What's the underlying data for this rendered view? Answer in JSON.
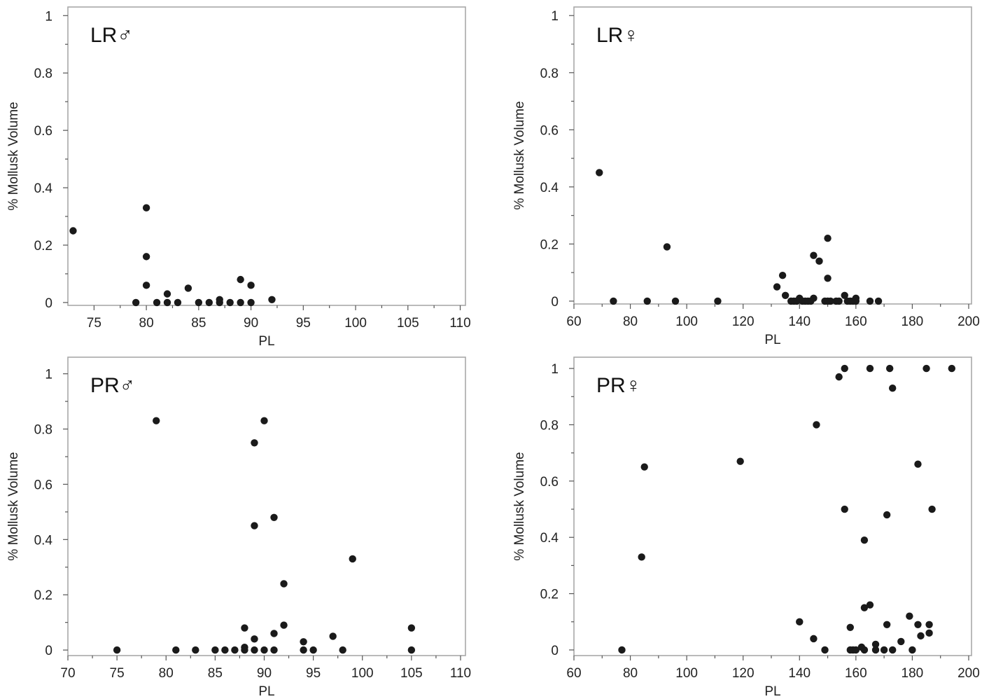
{
  "chart_data": [
    {
      "type": "scatter",
      "panel_label": "LR♂",
      "xlabel": "PL",
      "ylabel": "% Mollusk Volume",
      "xlim": [
        72.5,
        110.5
      ],
      "ylim": [
        -0.01,
        1.03
      ],
      "xticks": [
        "75",
        "80",
        "85",
        "90",
        "95",
        "100",
        "105",
        "110"
      ],
      "yticks": [
        "0",
        "0.2",
        "0.4",
        "0.6",
        "0.8",
        "1"
      ],
      "xtick_values": [
        75,
        80,
        85,
        90,
        95,
        100,
        105,
        110
      ],
      "ytick_values": [
        0,
        0.2,
        0.4,
        0.6,
        0.8,
        1
      ],
      "grid": false,
      "points": [
        [
          73,
          0.25
        ],
        [
          79,
          0.0
        ],
        [
          80,
          0.33
        ],
        [
          80,
          0.16
        ],
        [
          80,
          0.06
        ],
        [
          81,
          0.0
        ],
        [
          82,
          0.0
        ],
        [
          82,
          0.03
        ],
        [
          83,
          0.0
        ],
        [
          84,
          0.05
        ],
        [
          85,
          0.0
        ],
        [
          86,
          0.0
        ],
        [
          87,
          0.01
        ],
        [
          87,
          0.0
        ],
        [
          88,
          0.0
        ],
        [
          89,
          0.08
        ],
        [
          89,
          0.0
        ],
        [
          90,
          0.06
        ],
        [
          90,
          0.0
        ],
        [
          92,
          0.01
        ]
      ]
    },
    {
      "type": "scatter",
      "panel_label": "LR♀",
      "xlabel": "PL",
      "ylabel": "% Mollusk Volume",
      "xlim": [
        60,
        201
      ],
      "ylim": [
        -0.01,
        1.03
      ],
      "xticks": [
        "60",
        "80",
        "100",
        "120",
        "140",
        "160",
        "180",
        "200"
      ],
      "yticks": [
        "0",
        "0.2",
        "0.4",
        "0.6",
        "0.8",
        "1"
      ],
      "xtick_values": [
        60,
        80,
        100,
        120,
        140,
        160,
        180,
        200
      ],
      "ytick_values": [
        0,
        0.2,
        0.4,
        0.6,
        0.8,
        1
      ],
      "grid": false,
      "points": [
        [
          69,
          0.45
        ],
        [
          74,
          0.0
        ],
        [
          86,
          0.0
        ],
        [
          93,
          0.19
        ],
        [
          96,
          0.0
        ],
        [
          111,
          0.0
        ],
        [
          132,
          0.05
        ],
        [
          134,
          0.09
        ],
        [
          135,
          0.02
        ],
        [
          137,
          0.0
        ],
        [
          138,
          0.0
        ],
        [
          139,
          0.0
        ],
        [
          140,
          0.01
        ],
        [
          141,
          0.0
        ],
        [
          142,
          0.0
        ],
        [
          143,
          0.0
        ],
        [
          144,
          0.0
        ],
        [
          145,
          0.16
        ],
        [
          145,
          0.01
        ],
        [
          147,
          0.14
        ],
        [
          149,
          0.0
        ],
        [
          150,
          0.22
        ],
        [
          150,
          0.08
        ],
        [
          150,
          0.0
        ],
        [
          151,
          0.0
        ],
        [
          153,
          0.0
        ],
        [
          154,
          0.0
        ],
        [
          156,
          0.02
        ],
        [
          157,
          0.0
        ],
        [
          158,
          0.0
        ],
        [
          159,
          0.0
        ],
        [
          160,
          0.01
        ],
        [
          160,
          0.0
        ],
        [
          165,
          0.0
        ],
        [
          168,
          0.0
        ]
      ]
    },
    {
      "type": "scatter",
      "panel_label": "PR♂",
      "xlabel": "PL",
      "ylabel": "% Mollusk Volume",
      "xlim": [
        70,
        110.5
      ],
      "ylim": [
        -0.02,
        1.06
      ],
      "xticks": [
        "70",
        "75",
        "80",
        "85",
        "90",
        "95",
        "100",
        "105",
        "110"
      ],
      "yticks": [
        "0",
        "0.2",
        "0.4",
        "0.6",
        "0.8",
        "1"
      ],
      "xtick_values": [
        70,
        75,
        80,
        85,
        90,
        95,
        100,
        105,
        110
      ],
      "ytick_values": [
        0,
        0.2,
        0.4,
        0.6,
        0.8,
        1
      ],
      "grid": false,
      "points": [
        [
          75,
          0.0
        ],
        [
          79,
          0.83
        ],
        [
          81,
          0.0
        ],
        [
          83,
          0.0
        ],
        [
          85,
          0.0
        ],
        [
          86,
          0.0
        ],
        [
          87,
          0.0
        ],
        [
          88,
          0.08
        ],
        [
          88,
          0.01
        ],
        [
          88,
          0.0
        ],
        [
          89,
          0.75
        ],
        [
          89,
          0.45
        ],
        [
          89,
          0.04
        ],
        [
          89,
          0.0
        ],
        [
          90,
          0.83
        ],
        [
          90,
          0.0
        ],
        [
          91,
          0.48
        ],
        [
          91,
          0.06
        ],
        [
          91,
          0.0
        ],
        [
          92,
          0.24
        ],
        [
          92,
          0.09
        ],
        [
          94,
          0.03
        ],
        [
          94,
          0.0
        ],
        [
          95,
          0.0
        ],
        [
          97,
          0.05
        ],
        [
          98,
          0.0
        ],
        [
          99,
          0.33
        ],
        [
          105,
          0.08
        ],
        [
          105,
          0.0
        ]
      ]
    },
    {
      "type": "scatter",
      "panel_label": "PR♀",
      "xlabel": "PL",
      "ylabel": "% Mollusk Volume",
      "xlim": [
        60,
        201
      ],
      "ylim": [
        -0.02,
        1.04
      ],
      "xticks": [
        "60",
        "80",
        "100",
        "120",
        "140",
        "160",
        "180",
        "200"
      ],
      "yticks": [
        "0",
        "0.2",
        "0.4",
        "0.6",
        "0.8",
        "1"
      ],
      "xtick_values": [
        60,
        80,
        100,
        120,
        140,
        160,
        180,
        200
      ],
      "ytick_values": [
        0,
        0.2,
        0.4,
        0.6,
        0.8,
        1
      ],
      "grid": false,
      "points": [
        [
          77,
          0.0
        ],
        [
          84,
          0.33
        ],
        [
          85,
          0.65
        ],
        [
          119,
          0.67
        ],
        [
          140,
          0.1
        ],
        [
          145,
          0.04
        ],
        [
          146,
          0.8
        ],
        [
          149,
          0.0
        ],
        [
          154,
          0.97
        ],
        [
          156,
          1.0
        ],
        [
          156,
          0.5
        ],
        [
          158,
          0.08
        ],
        [
          158,
          0.0
        ],
        [
          159,
          0.0
        ],
        [
          160,
          0.0
        ],
        [
          162,
          0.01
        ],
        [
          163,
          0.15
        ],
        [
          163,
          0.39
        ],
        [
          163,
          0.0
        ],
        [
          165,
          1.0
        ],
        [
          165,
          0.16
        ],
        [
          167,
          0.02
        ],
        [
          167,
          0.0
        ],
        [
          170,
          0.0
        ],
        [
          171,
          0.48
        ],
        [
          171,
          0.09
        ],
        [
          172,
          1.0
        ],
        [
          173,
          0.93
        ],
        [
          173,
          0.0
        ],
        [
          176,
          0.03
        ],
        [
          179,
          0.12
        ],
        [
          180,
          0.0
        ],
        [
          182,
          0.66
        ],
        [
          182,
          0.09
        ],
        [
          183,
          0.05
        ],
        [
          185,
          1.0
        ],
        [
          186,
          0.09
        ],
        [
          186,
          0.06
        ],
        [
          187,
          0.5
        ],
        [
          194,
          1.0
        ]
      ]
    }
  ]
}
